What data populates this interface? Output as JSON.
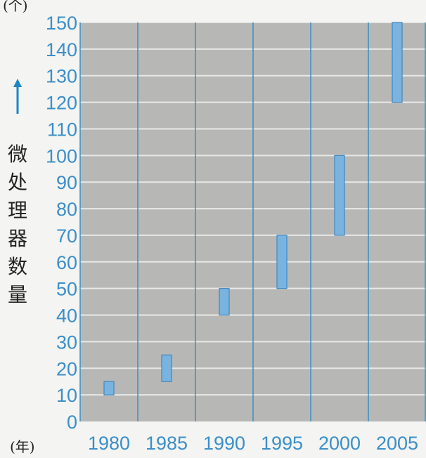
{
  "chart_data": {
    "type": "bar",
    "subtype": "floating-range",
    "categories": [
      "1980",
      "1985",
      "1990",
      "1995",
      "2000",
      "2005"
    ],
    "ranges": [
      {
        "low": 10,
        "high": 15
      },
      {
        "low": 15,
        "high": 25
      },
      {
        "low": 40,
        "high": 50
      },
      {
        "low": 50,
        "high": 70
      },
      {
        "low": 70,
        "high": 100
      },
      {
        "low": 120,
        "high": 150
      }
    ],
    "ylabel": "微处理器数量",
    "y_unit": "(个)",
    "x_unit": "(年)",
    "ylim": [
      0,
      150
    ],
    "yticks": [
      0,
      10,
      20,
      30,
      40,
      50,
      60,
      70,
      80,
      90,
      100,
      110,
      120,
      130,
      140,
      150
    ],
    "grid": true
  },
  "colors": {
    "plot_background": "#b7b7b5",
    "grid_line": "#e8e8e6",
    "column_separator": "#3d8fc4",
    "bar_fill": "#79b4e0",
    "bar_stroke": "#3f87c0",
    "tick_label": "#3b8fc8",
    "arrow": "#1a86c6"
  }
}
